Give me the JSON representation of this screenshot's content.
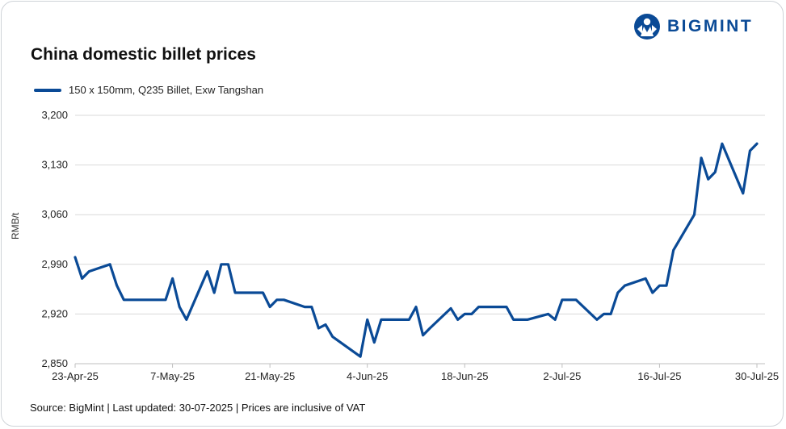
{
  "brand": {
    "name": "BIGMINT",
    "color": "#0a4a96"
  },
  "footer": {
    "source": "Source: BigMint | Last updated: 30-07-2025 | Prices are inclusive of VAT"
  },
  "chart_data": {
    "type": "line",
    "title": "China domestic billet prices",
    "xlabel": "",
    "ylabel": "RMB/t",
    "ylim": [
      2850,
      3200
    ],
    "yticks": [
      2850,
      2920,
      2990,
      3060,
      3130,
      3200
    ],
    "ytick_labels": [
      "2,850",
      "2,920",
      "2,990",
      "3,060",
      "3,130",
      "3,200"
    ],
    "x_tick_labels": [
      "23-Apr-25",
      "7-May-25",
      "21-May-25",
      "4-Jun-25",
      "18-Jun-25",
      "2-Jul-25",
      "16-Jul-25",
      "30-Jul-25"
    ],
    "x_tick_dates": [
      "2025-04-23",
      "2025-05-07",
      "2025-05-21",
      "2025-06-04",
      "2025-06-18",
      "2025-07-02",
      "2025-07-16",
      "2025-07-30"
    ],
    "grid": true,
    "legend_position": "top-left",
    "series": [
      {
        "name": "150 x 150mm, Q235 Billet, Exw Tangshan",
        "color": "#0a4a96",
        "x": [
          "2025-04-23",
          "2025-04-24",
          "2025-04-25",
          "2025-04-28",
          "2025-04-29",
          "2025-04-30",
          "2025-05-06",
          "2025-05-07",
          "2025-05-08",
          "2025-05-09",
          "2025-05-12",
          "2025-05-13",
          "2025-05-14",
          "2025-05-15",
          "2025-05-16",
          "2025-05-19",
          "2025-05-20",
          "2025-05-21",
          "2025-05-22",
          "2025-05-23",
          "2025-05-26",
          "2025-05-27",
          "2025-05-28",
          "2025-05-29",
          "2025-05-30",
          "2025-06-03",
          "2025-06-04",
          "2025-06-05",
          "2025-06-06",
          "2025-06-09",
          "2025-06-10",
          "2025-06-11",
          "2025-06-12",
          "2025-06-13",
          "2025-06-16",
          "2025-06-17",
          "2025-06-18",
          "2025-06-19",
          "2025-06-20",
          "2025-06-23",
          "2025-06-24",
          "2025-06-25",
          "2025-06-26",
          "2025-06-27",
          "2025-06-30",
          "2025-07-01",
          "2025-07-02",
          "2025-07-03",
          "2025-07-04",
          "2025-07-07",
          "2025-07-08",
          "2025-07-09",
          "2025-07-10",
          "2025-07-11",
          "2025-07-14",
          "2025-07-15",
          "2025-07-16",
          "2025-07-17",
          "2025-07-18",
          "2025-07-21",
          "2025-07-22",
          "2025-07-23",
          "2025-07-24",
          "2025-07-25",
          "2025-07-28",
          "2025-07-29",
          "2025-07-30"
        ],
        "values": [
          3000,
          2970,
          2980,
          2990,
          2960,
          2940,
          2940,
          2970,
          2930,
          2912,
          2980,
          2950,
          2990,
          2990,
          2950,
          2950,
          2950,
          2930,
          2940,
          2940,
          2930,
          2930,
          2900,
          2905,
          2888,
          2860,
          2912,
          2880,
          2912,
          2912,
          2912,
          2930,
          2890,
          2900,
          2928,
          2912,
          2920,
          2920,
          2930,
          2930,
          2930,
          2912,
          2912,
          2912,
          2920,
          2912,
          2940,
          2940,
          2940,
          2912,
          2920,
          2920,
          2950,
          2960,
          2970,
          2950,
          2960,
          2960,
          3010,
          3060,
          3140,
          3110,
          3120,
          3160,
          3090,
          3150,
          3160
        ]
      }
    ]
  }
}
